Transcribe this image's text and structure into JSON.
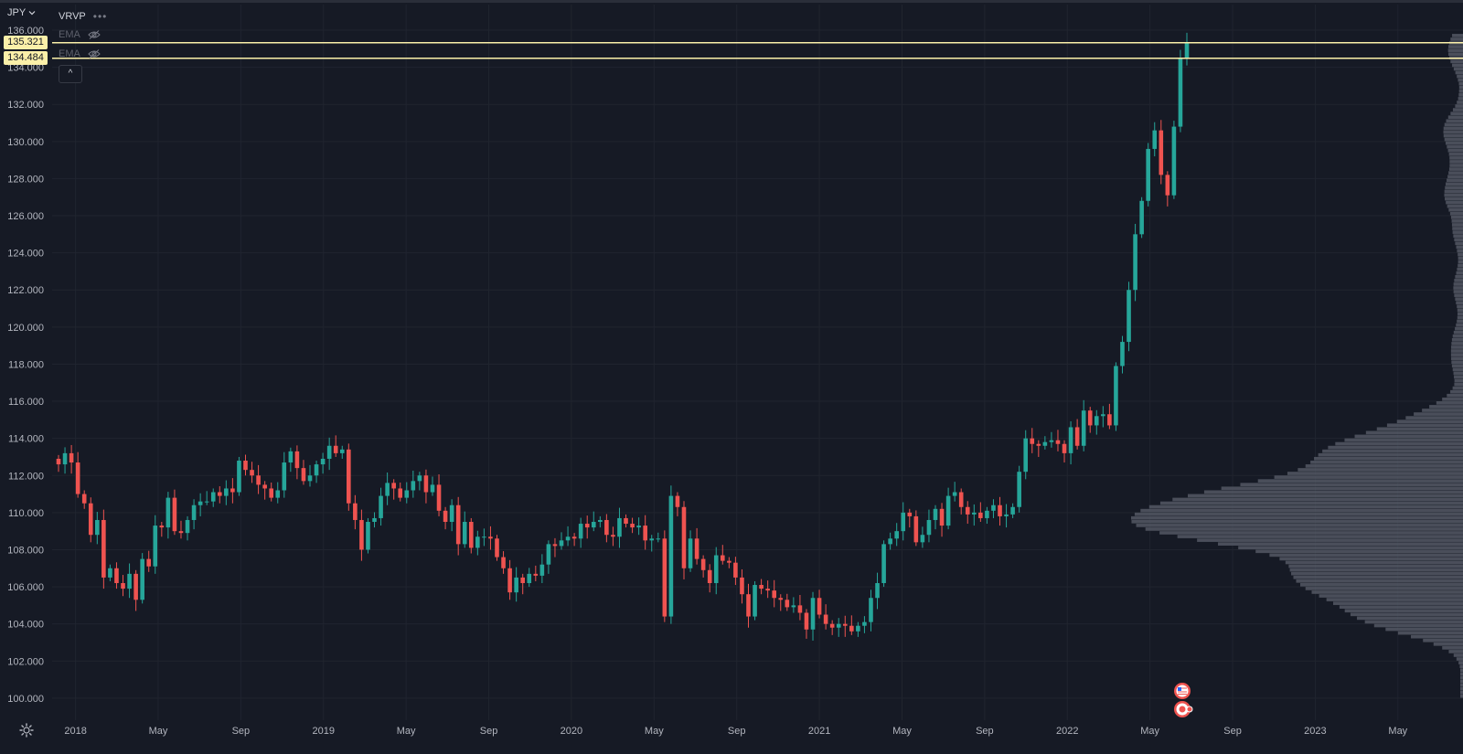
{
  "header": {
    "symbol": "JPY",
    "indicator_vrvp": "VRVP",
    "more_label": "•••",
    "ema_1": "EMA",
    "ema_2": "EMA",
    "collapse_label": "^"
  },
  "price_tags": [
    "135.321",
    "134.484"
  ],
  "colors": {
    "background": "#161a25",
    "grid": "#20242f",
    "up": "#26a69a",
    "down": "#ef5350",
    "level_line": "#fbf0a9",
    "volume_profile": "#545864",
    "axis_text": "#b2b5be"
  },
  "icons": [
    "chevron-down-icon",
    "eye-crossed-icon",
    "settings-icon",
    "us-flag-icon",
    "event-marker-icon"
  ],
  "chart_data": {
    "type": "candlestick",
    "title": "JPY",
    "ylim": [
      99.6,
      136.0
    ],
    "y_ticks": [
      "100.000",
      "102.000",
      "104.000",
      "106.000",
      "108.000",
      "110.000",
      "112.000",
      "114.000",
      "116.000",
      "118.000",
      "120.000",
      "122.000",
      "124.000",
      "126.000",
      "128.000",
      "130.000",
      "132.000",
      "134.000",
      "136.000"
    ],
    "x_ticks": [
      "2018",
      "May",
      "Sep",
      "2019",
      "May",
      "Sep",
      "2020",
      "May",
      "Sep",
      "2021",
      "May",
      "Sep",
      "2022",
      "May",
      "Sep",
      "2023",
      "May"
    ],
    "x_range": [
      "2017-12",
      "2023-07"
    ],
    "interval": "weekly",
    "horizontal_levels": [
      135.321,
      134.484
    ],
    "closes": [
      112.6,
      113.2,
      112.7,
      111.0,
      110.5,
      108.8,
      109.6,
      106.5,
      107.0,
      106.2,
      105.9,
      106.7,
      105.3,
      107.5,
      107.1,
      109.3,
      109.2,
      110.8,
      109.0,
      108.9,
      109.6,
      110.4,
      110.6,
      110.6,
      111.1,
      110.9,
      111.3,
      111.1,
      112.8,
      112.3,
      112.0,
      111.5,
      111.3,
      110.8,
      111.2,
      112.7,
      113.3,
      112.4,
      111.7,
      112.0,
      112.6,
      112.9,
      113.6,
      113.2,
      113.4,
      110.5,
      109.6,
      108.0,
      109.5,
      109.7,
      110.9,
      111.6,
      111.3,
      110.8,
      111.2,
      111.7,
      112.0,
      111.1,
      111.5,
      110.1,
      109.5,
      110.4,
      108.3,
      109.5,
      108.1,
      108.7,
      108.7,
      108.6,
      107.6,
      107.0,
      105.7,
      106.5,
      106.2,
      106.7,
      106.6,
      107.2,
      108.3,
      108.2,
      108.5,
      108.7,
      108.6,
      109.4,
      109.2,
      109.5,
      109.6,
      108.8,
      108.7,
      109.7,
      109.4,
      109.2,
      109.3,
      108.5,
      108.6,
      108.6,
      104.4,
      110.9,
      110.3,
      107.0,
      108.6,
      107.5,
      106.9,
      106.2,
      107.7,
      107.4,
      107.3,
      106.5,
      105.6,
      104.4,
      106.1,
      105.9,
      105.8,
      105.4,
      105.3,
      104.9,
      105.0,
      104.6,
      103.7,
      105.4,
      104.5,
      104.0,
      103.8,
      104.0,
      103.9,
      103.6,
      103.9,
      104.1,
      105.4,
      106.2,
      108.3,
      108.6,
      109.0,
      110.0,
      109.8,
      108.4,
      108.8,
      109.6,
      110.2,
      109.3,
      110.9,
      111.1,
      110.3,
      109.9,
      110.0,
      109.7,
      110.1,
      110.4,
      109.8,
      109.9,
      110.3,
      112.2,
      114.0,
      113.7,
      113.6,
      113.8,
      113.9,
      113.7,
      113.2,
      114.6,
      113.6,
      115.5,
      114.7,
      115.2,
      115.3,
      114.7,
      117.9,
      119.2,
      122.0,
      125.0,
      126.8,
      129.6,
      130.6,
      128.2,
      127.1,
      130.8,
      134.5,
      135.3
    ]
  }
}
